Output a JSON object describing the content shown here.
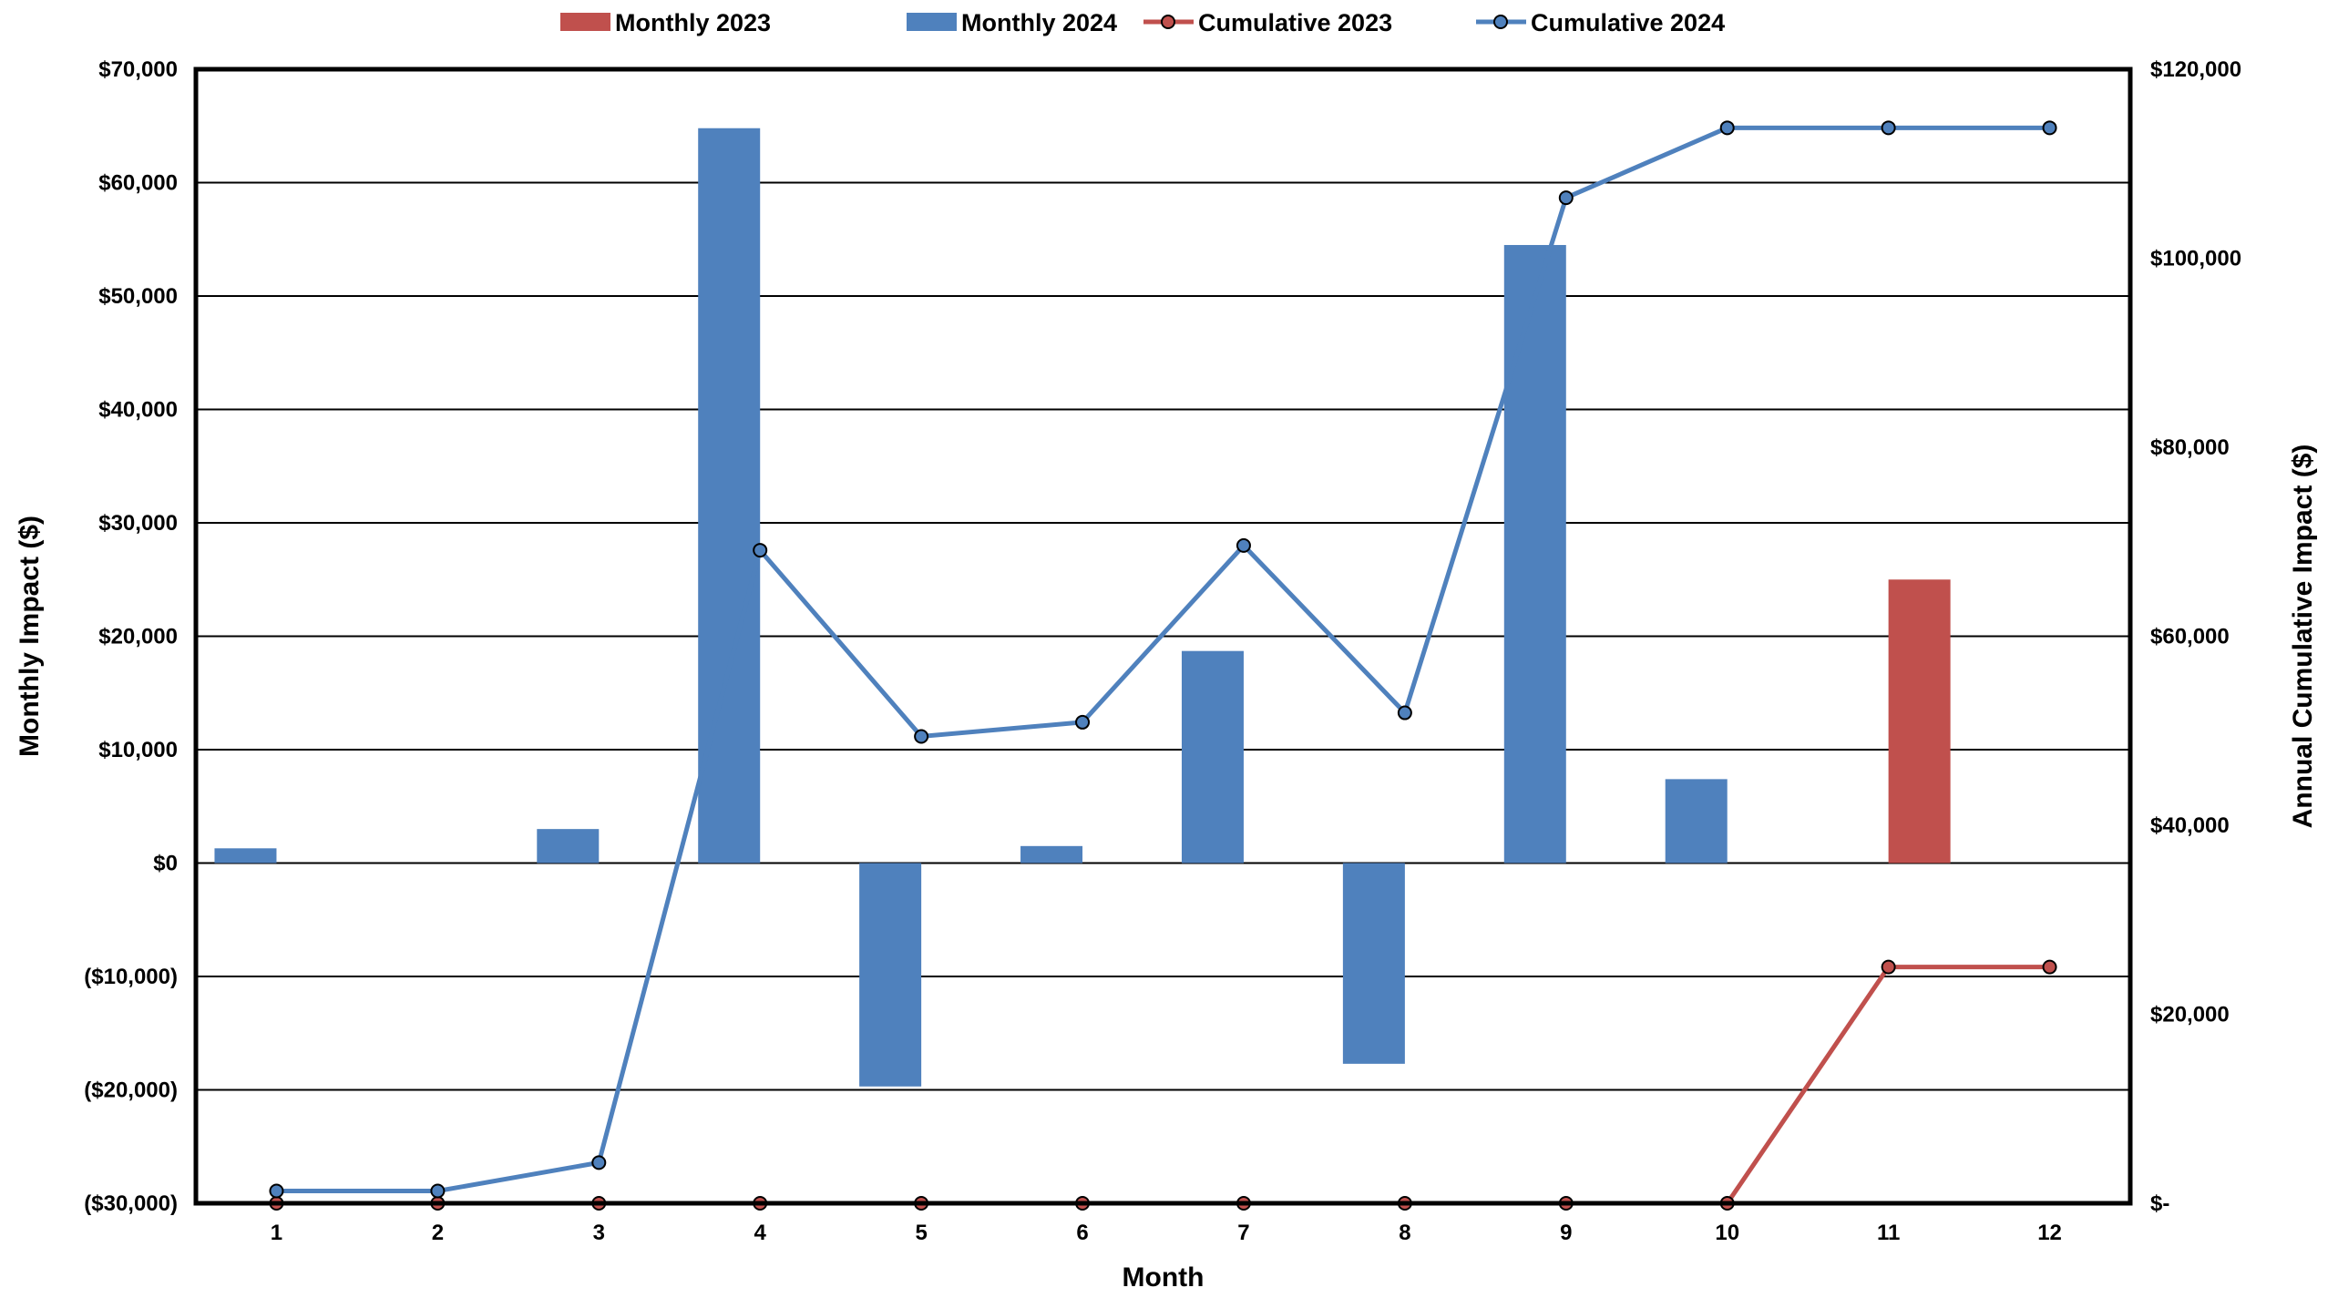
{
  "chart_data": {
    "type": "bar",
    "categories": [
      "1",
      "2",
      "3",
      "4",
      "5",
      "6",
      "7",
      "8",
      "9",
      "10",
      "11",
      "12"
    ],
    "xlabel": "Month",
    "ylabel": "Monthly Impact ($)",
    "y2label": "Annual Cumulative Impact ($)",
    "ylim": [
      -30000,
      70000
    ],
    "y2lim": [
      0,
      120000
    ],
    "yticks": [
      {
        "value": 70000,
        "label": "$70,000"
      },
      {
        "value": 60000,
        "label": "$60,000"
      },
      {
        "value": 50000,
        "label": "$50,000"
      },
      {
        "value": 40000,
        "label": "$40,000"
      },
      {
        "value": 30000,
        "label": "$30,000"
      },
      {
        "value": 20000,
        "label": "$20,000"
      },
      {
        "value": 10000,
        "label": "$10,000"
      },
      {
        "value": 0,
        "label": "$0"
      },
      {
        "value": -10000,
        "label": "($10,000)"
      },
      {
        "value": -20000,
        "label": "($20,000)"
      },
      {
        "value": -30000,
        "label": "($30,000)"
      }
    ],
    "y2ticks": [
      {
        "value": 120000,
        "label": "$120,000"
      },
      {
        "value": 100000,
        "label": "$100,000"
      },
      {
        "value": 80000,
        "label": "$80,000"
      },
      {
        "value": 60000,
        "label": "$60,000"
      },
      {
        "value": 40000,
        "label": "$40,000"
      },
      {
        "value": 20000,
        "label": "$20,000"
      },
      {
        "value": 0,
        "label": "$-"
      }
    ],
    "negative_label_color": "#ff0000",
    "grid": true,
    "legend_position": "top",
    "series": [
      {
        "name": "Monthly 2023",
        "kind": "bar",
        "axis": "left",
        "color": "#c0504d",
        "values": [
          0,
          0,
          0,
          0,
          0,
          0,
          0,
          0,
          0,
          0,
          25000,
          0
        ]
      },
      {
        "name": "Monthly 2024",
        "kind": "bar",
        "axis": "left",
        "color": "#4f81bd",
        "values": [
          1300,
          0,
          3000,
          64800,
          -19700,
          1500,
          18700,
          -17700,
          54500,
          7400,
          0,
          0
        ]
      },
      {
        "name": "Cumulative 2023",
        "kind": "line",
        "axis": "right",
        "color": "#c0504d",
        "values": [
          0,
          0,
          0,
          0,
          0,
          0,
          0,
          0,
          0,
          0,
          25000,
          25000
        ]
      },
      {
        "name": "Cumulative 2024",
        "kind": "line",
        "axis": "right",
        "color": "#4f81bd",
        "values": [
          1300,
          1300,
          4300,
          69100,
          49400,
          50900,
          69600,
          51900,
          106400,
          113800,
          113800,
          113800
        ]
      }
    ]
  }
}
